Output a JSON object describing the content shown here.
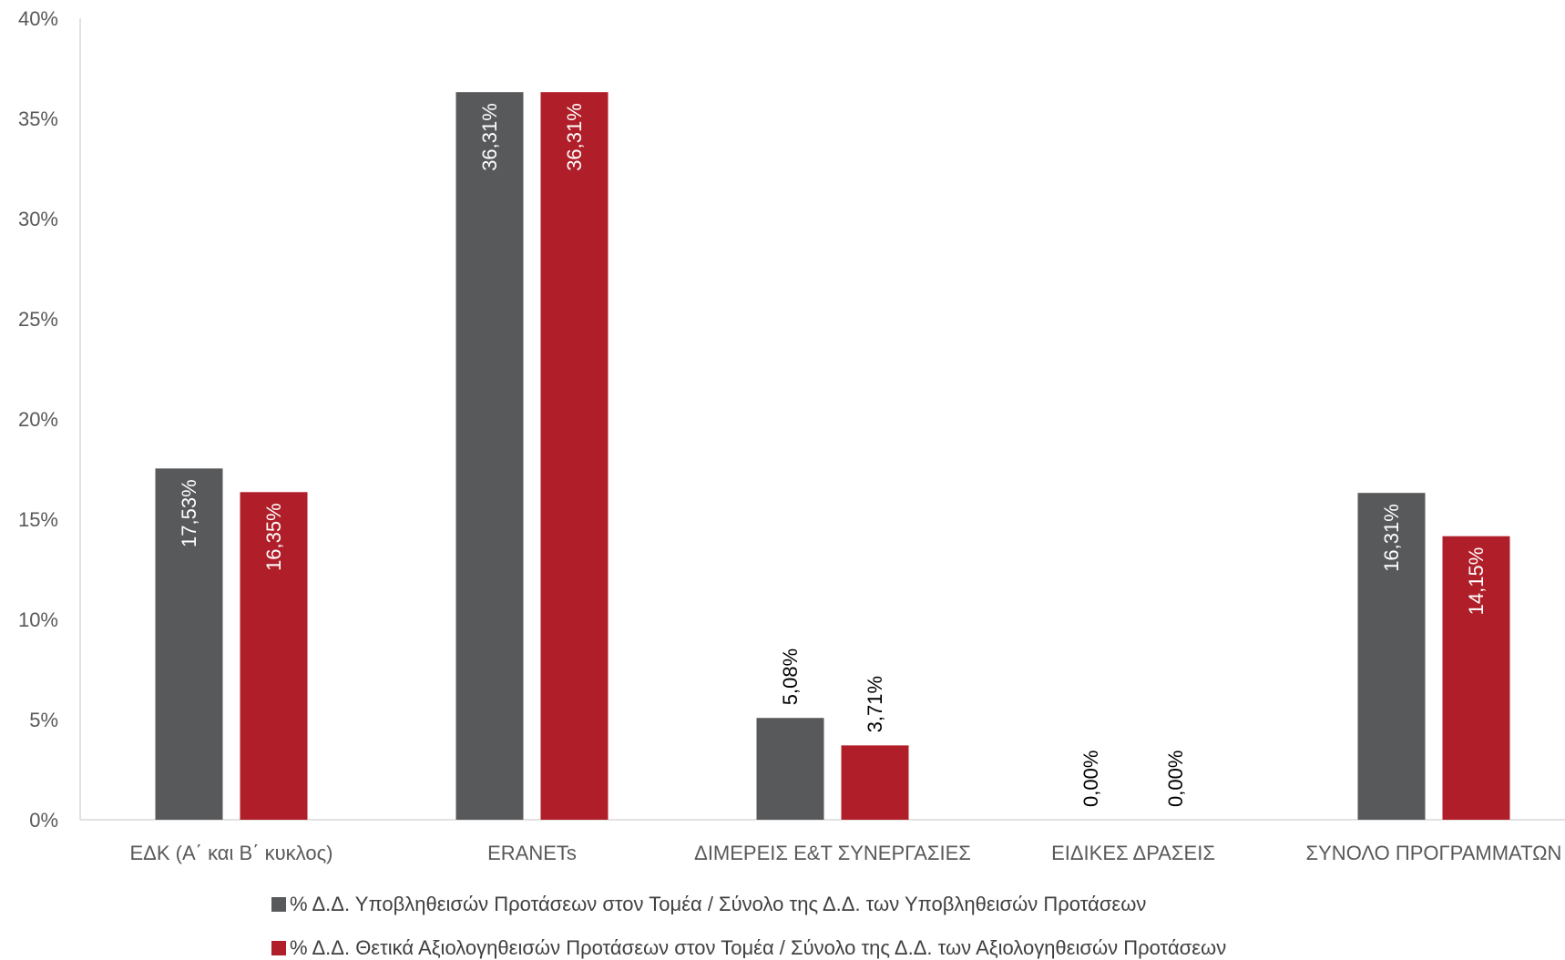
{
  "chart_data": {
    "type": "bar",
    "categories": [
      "ΕΔΚ (Α΄ και Β΄ κυκλος)",
      "ERANETs",
      "ΔΙΜΕΡΕΙΣ Ε&Τ ΣΥΝΕΡΓΑΣΙΕΣ",
      "ΕΙΔΙΚΕΣ ΔΡΑΣΕΙΣ",
      "ΣΥΝΟΛΟ ΠΡΟΓΡΑΜΜΑΤΩΝ"
    ],
    "series": [
      {
        "name": "% Δ.Δ. Υποβληθεισών Προτάσεων στον Τομέα / Σύνολο της Δ.Δ. των Υποβληθεισών Προτάσεων",
        "color": "#58595b",
        "values": [
          17.53,
          36.31,
          5.08,
          0.0,
          16.31
        ],
        "labels": [
          "17,53%",
          "36,31%",
          "5,08%",
          "0,00%",
          "16,31%"
        ]
      },
      {
        "name": "% Δ.Δ. Θετικά Αξιολογηθεισών Προτάσεων στον Τομέα / Σύνολο της Δ.Δ. των Αξιολογηθεισών Προτάσεων",
        "color": "#b01f29",
        "values": [
          16.35,
          36.31,
          3.71,
          0.0,
          14.15
        ],
        "labels": [
          "16,35%",
          "36,31%",
          "3,71%",
          "0,00%",
          "14,15%"
        ]
      }
    ],
    "ylim": [
      0,
      40
    ],
    "yticks": [
      0,
      5,
      10,
      15,
      20,
      25,
      30,
      35,
      40
    ],
    "ytick_labels": [
      "0%",
      "5%",
      "10%",
      "15%",
      "20%",
      "25%",
      "30%",
      "35%",
      "40%"
    ],
    "grid": false,
    "legend_position": "bottom",
    "title": "",
    "xlabel": "",
    "ylabel": ""
  }
}
